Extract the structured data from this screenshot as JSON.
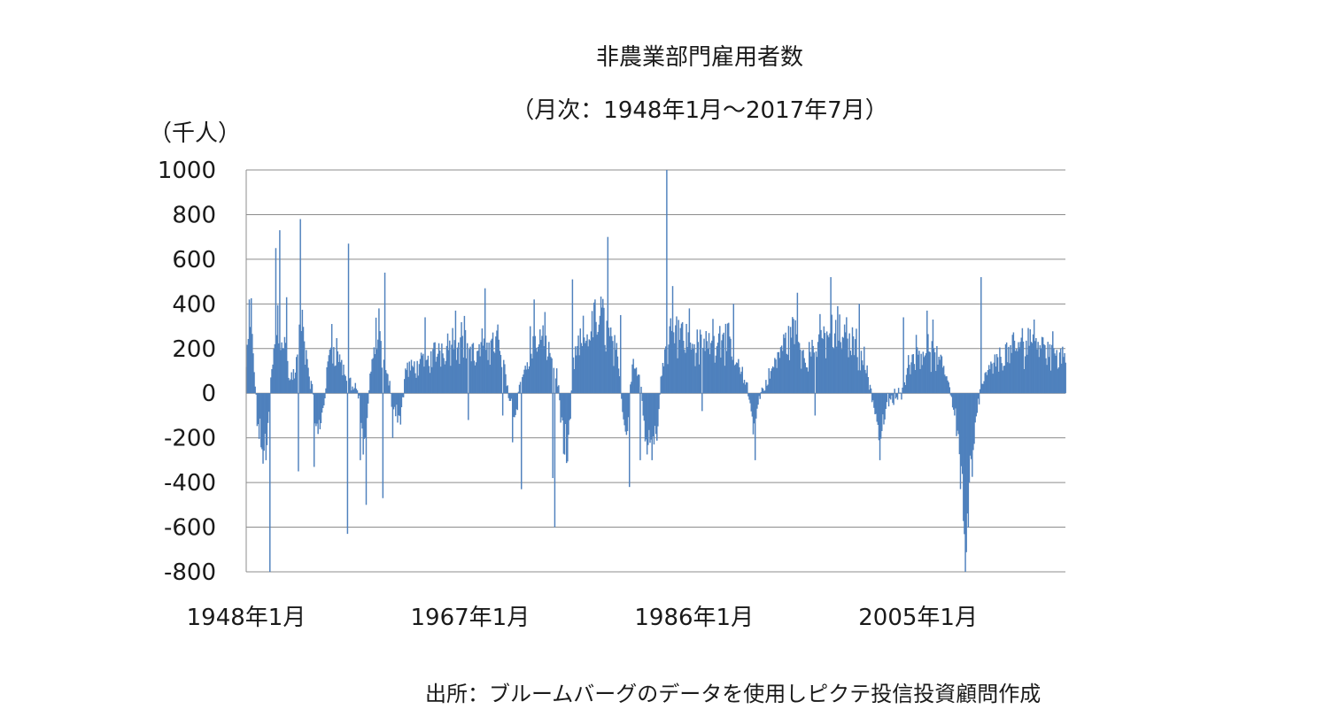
{
  "chart_data": {
    "type": "bar",
    "title": "非農業部門雇用者数",
    "subtitle": "（月次：1948年1月～2017年7月）",
    "ylabel": "（千人）",
    "xlabel": "",
    "ylim": [
      -800,
      1000
    ],
    "yticks": [
      1000,
      800,
      600,
      400,
      200,
      0,
      -200,
      -400,
      -600,
      -800
    ],
    "x_tick_labels": [
      "1948年1月",
      "1967年1月",
      "1986年1月",
      "2005年1月"
    ],
    "x_range": [
      "1948-01",
      "2017-07"
    ],
    "grid": true,
    "bar_color": "#4f81bd",
    "anchors": [
      [
        "1948-01",
        120
      ],
      [
        "1948-06",
        330
      ],
      [
        "1948-12",
        -120
      ],
      [
        "1949-05",
        -250
      ],
      [
        "1949-10",
        -230
      ],
      [
        "1950-03",
        120
      ],
      [
        "1950-09",
        330
      ],
      [
        "1951-03",
        250
      ],
      [
        "1951-09",
        60
      ],
      [
        "1952-03",
        90
      ],
      [
        "1952-09",
        320
      ],
      [
        "1953-03",
        140
      ],
      [
        "1953-09",
        -30
      ],
      [
        "1954-02",
        -200
      ],
      [
        "1954-08",
        -40
      ],
      [
        "1955-02",
        200
      ],
      [
        "1955-08",
        210
      ],
      [
        "1956-06",
        70
      ],
      [
        "1957-06",
        20
      ],
      [
        "1958-01",
        -250
      ],
      [
        "1958-07",
        50
      ],
      [
        "1959-01",
        250
      ],
      [
        "1959-07",
        180
      ],
      [
        "1960-01",
        60
      ],
      [
        "1960-06",
        -40
      ],
      [
        "1961-02",
        -120
      ],
      [
        "1961-07",
        100
      ],
      [
        "1962-06",
        120
      ],
      [
        "1963-06",
        140
      ],
      [
        "1964-06",
        200
      ],
      [
        "1965-06",
        230
      ],
      [
        "1966-06",
        260
      ],
      [
        "1967-06",
        150
      ],
      [
        "1968-06",
        230
      ],
      [
        "1969-06",
        230
      ],
      [
        "1970-03",
        30
      ],
      [
        "1970-10",
        -100
      ],
      [
        "1971-06",
        80
      ],
      [
        "1972-06",
        200
      ],
      [
        "1973-06",
        250
      ],
      [
        "1974-06",
        60
      ],
      [
        "1974-12",
        -250
      ],
      [
        "1975-04",
        -320
      ],
      [
        "1975-10",
        130
      ],
      [
        "1976-06",
        230
      ],
      [
        "1977-06",
        290
      ],
      [
        "1978-06",
        340
      ],
      [
        "1979-06",
        160
      ],
      [
        "1980-04",
        -200
      ],
      [
        "1980-10",
        150
      ],
      [
        "1981-05",
        80
      ],
      [
        "1981-12",
        -200
      ],
      [
        "1982-06",
        -210
      ],
      [
        "1982-12",
        -150
      ],
      [
        "1983-06",
        230
      ],
      [
        "1984-06",
        320
      ],
      [
        "1985-06",
        230
      ],
      [
        "1986-06",
        200
      ],
      [
        "1987-06",
        250
      ],
      [
        "1988-06",
        270
      ],
      [
        "1989-06",
        150
      ],
      [
        "1990-06",
        40
      ],
      [
        "1991-02",
        -150
      ],
      [
        "1991-08",
        -10
      ],
      [
        "1992-06",
        80
      ],
      [
        "1993-06",
        200
      ],
      [
        "1994-06",
        280
      ],
      [
        "1995-06",
        150
      ],
      [
        "1996-06",
        230
      ],
      [
        "1997-06",
        260
      ],
      [
        "1998-06",
        250
      ],
      [
        "1999-06",
        240
      ],
      [
        "2000-06",
        150
      ],
      [
        "2001-03",
        -30
      ],
      [
        "2001-10",
        -200
      ],
      [
        "2002-06",
        -40
      ],
      [
        "2003-06",
        -10
      ],
      [
        "2004-06",
        170
      ],
      [
        "2005-06",
        200
      ],
      [
        "2006-06",
        160
      ],
      [
        "2007-06",
        90
      ],
      [
        "2008-03",
        -100
      ],
      [
        "2008-09",
        -350
      ],
      [
        "2009-01",
        -680
      ],
      [
        "2009-06",
        -380
      ],
      [
        "2009-12",
        -120
      ],
      [
        "2010-06",
        50
      ],
      [
        "2011-06",
        130
      ],
      [
        "2012-06",
        170
      ],
      [
        "2013-06",
        200
      ],
      [
        "2014-06",
        250
      ],
      [
        "2015-06",
        220
      ],
      [
        "2016-06",
        190
      ],
      [
        "2017-07",
        180
      ]
    ],
    "spikes": [
      [
        "1948-04",
        420
      ],
      [
        "1949-09",
        -300
      ],
      [
        "1950-01",
        -800
      ],
      [
        "1950-07",
        650
      ],
      [
        "1950-11",
        730
      ],
      [
        "1951-06",
        430
      ],
      [
        "1952-06",
        -350
      ],
      [
        "1952-08",
        780
      ],
      [
        "1953-10",
        -330
      ],
      [
        "1955-04",
        310
      ],
      [
        "1956-08",
        -630
      ],
      [
        "1956-09",
        670
      ],
      [
        "1957-09",
        -300
      ],
      [
        "1958-03",
        -500
      ],
      [
        "1959-04",
        380
      ],
      [
        "1959-08",
        -470
      ],
      [
        "1959-10",
        540
      ],
      [
        "1960-06",
        -200
      ],
      [
        "1963-03",
        340
      ],
      [
        "1965-10",
        370
      ],
      [
        "1966-11",
        -120
      ],
      [
        "1968-04",
        470
      ],
      [
        "1969-10",
        -100
      ],
      [
        "1970-08",
        -220
      ],
      [
        "1971-05",
        -430
      ],
      [
        "1972-02",
        300
      ],
      [
        "1972-06",
        420
      ],
      [
        "1974-01",
        -380
      ],
      [
        "1974-03",
        -600
      ],
      [
        "1975-09",
        510
      ],
      [
        "1977-08",
        420
      ],
      [
        "1978-09",
        700
      ],
      [
        "1979-10",
        350
      ],
      [
        "1980-07",
        -420
      ],
      [
        "1981-06",
        -300
      ],
      [
        "1982-06",
        -300
      ],
      [
        "1983-09",
        1000
      ],
      [
        "1984-03",
        480
      ],
      [
        "1985-08",
        380
      ],
      [
        "1986-09",
        -80
      ],
      [
        "1987-03",
        200
      ],
      [
        "1989-05",
        400
      ],
      [
        "1991-03",
        -300
      ],
      [
        "1992-09",
        120
      ],
      [
        "1994-10",
        450
      ],
      [
        "1996-04",
        -100
      ],
      [
        "1997-08",
        520
      ],
      [
        "1998-03",
        390
      ],
      [
        "2000-01",
        400
      ],
      [
        "2001-10",
        -300
      ],
      [
        "2003-10",
        340
      ],
      [
        "2005-10",
        370
      ],
      [
        "2006-04",
        330
      ],
      [
        "2008-02",
        -100
      ],
      [
        "2009-01",
        -800
      ],
      [
        "2010-05",
        520
      ],
      [
        "2010-03",
        -50
      ],
      [
        "2014-11",
        330
      ]
    ]
  }
}
